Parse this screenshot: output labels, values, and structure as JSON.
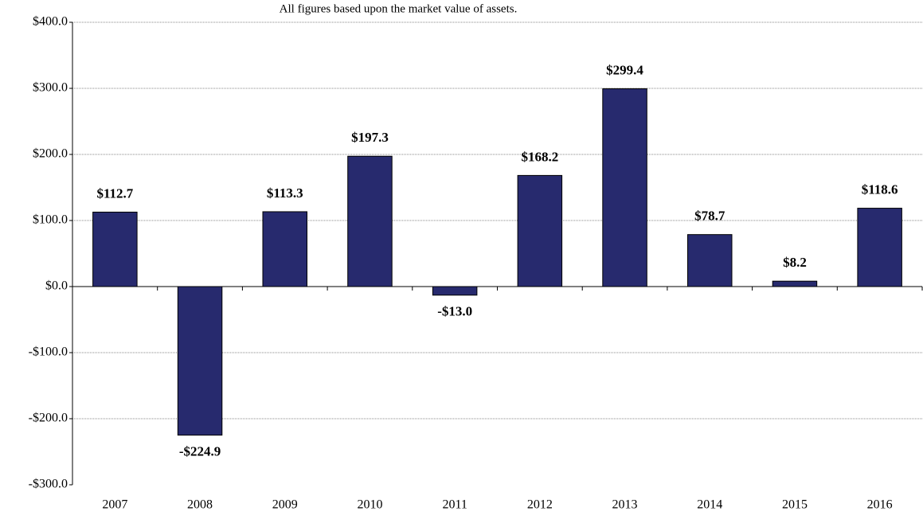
{
  "chart_data": {
    "type": "bar",
    "subtitle": "All figures based upon the market value of assets.",
    "categories": [
      "2007",
      "2008",
      "2009",
      "2010",
      "2011",
      "2012",
      "2013",
      "2014",
      "2015",
      "2016"
    ],
    "values": [
      112.7,
      -224.9,
      113.3,
      197.3,
      -13.0,
      168.2,
      299.4,
      78.7,
      8.2,
      118.6
    ],
    "value_labels": [
      "$112.7",
      "-$224.9",
      "$113.3",
      "$197.3",
      "-$13.0",
      "$168.2",
      "$299.4",
      "$78.7",
      "$8.2",
      "$118.6"
    ],
    "color": "#272a6e",
    "ylim": [
      -300,
      400
    ],
    "yticks": [
      {
        "value": -300,
        "label": "-$300.0"
      },
      {
        "value": -200,
        "label": "-$200.0"
      },
      {
        "value": -100,
        "label": "-$100.0"
      },
      {
        "value": 0,
        "label": "$0.0"
      },
      {
        "value": 100,
        "label": "$100.0"
      },
      {
        "value": 200,
        "label": "$200.0"
      },
      {
        "value": 300,
        "label": "$300.0"
      },
      {
        "value": 400,
        "label": "$400.0"
      }
    ],
    "grid": true
  }
}
